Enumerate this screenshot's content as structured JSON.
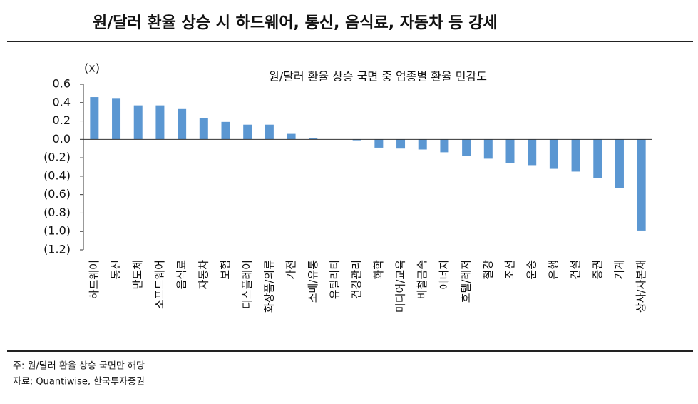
{
  "title": "원/달러 환율 상승 시 하드웨어, 통신, 음식료, 자동차 등 강세",
  "chart_data": {
    "type": "bar",
    "title": "원/달러 환율 상승 국면 중 업종별 환율 민감도",
    "y_unit": "(x)",
    "categories": [
      "하드웨어",
      "통신",
      "반도체",
      "소프트웨어",
      "음식료",
      "자동차",
      "보험",
      "디스플레이",
      "화장품/의류",
      "가전",
      "소매/유통",
      "유틸리티",
      "건강관리",
      "화학",
      "미디어/교육",
      "비철금속",
      "에너지",
      "호텔/레저",
      "철강",
      "조선",
      "운송",
      "은행",
      "건설",
      "증권",
      "기계",
      "상사/자본재"
    ],
    "values": [
      0.46,
      0.45,
      0.37,
      0.37,
      0.33,
      0.23,
      0.19,
      0.16,
      0.16,
      0.06,
      0.01,
      0.0,
      -0.01,
      -0.09,
      -0.1,
      -0.11,
      -0.14,
      -0.18,
      -0.21,
      -0.26,
      -0.28,
      -0.32,
      -0.35,
      -0.42,
      -0.53,
      -0.99
    ],
    "color": "#5b97d2",
    "ylim": [
      -1.2,
      0.6
    ],
    "yticks": [
      0.6,
      0.4,
      0.2,
      {
        "value": 0,
        "label": "0.0"
      },
      {
        "value": -0.2,
        "label": "(0.2)"
      },
      {
        "value": -0.4,
        "label": "(0.4)"
      },
      {
        "value": -0.6,
        "label": "(0.6)"
      },
      {
        "value": -0.8,
        "label": "(0.8)"
      },
      {
        "value": -1.0,
        "label": "(1.0)"
      },
      {
        "value": -1.2,
        "label": "(1.2)"
      }
    ],
    "grid": false
  },
  "notes": [
    "주: 원/달러 환율 상승 국면만 해당",
    "자료: Quantiwise, 한국투자증권"
  ]
}
